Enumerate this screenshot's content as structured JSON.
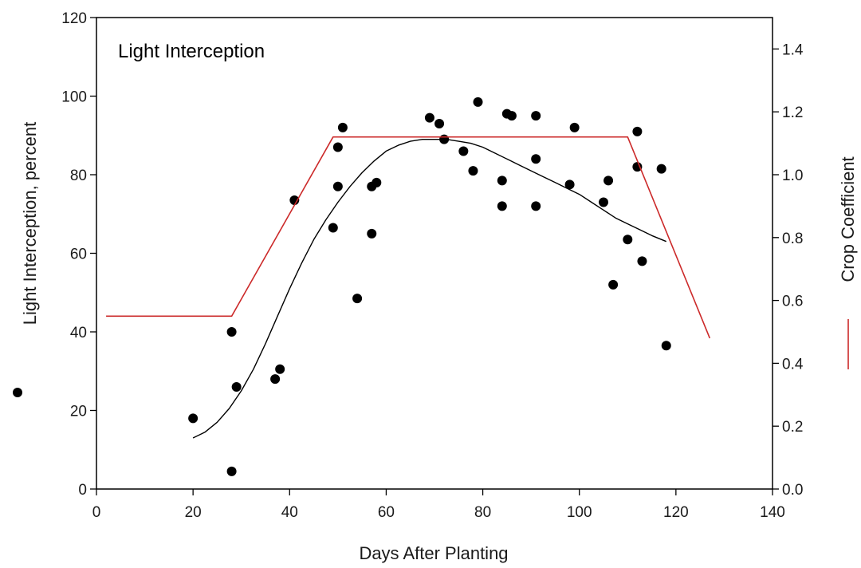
{
  "chart_data": {
    "type": "scatter",
    "title": "Light Interception",
    "xlabel": "Days After Planting",
    "ylabel": "Light Interception, percent",
    "y2label": "Crop Coefficient",
    "xlim": [
      0,
      140
    ],
    "ylim": [
      0,
      120
    ],
    "y2lim": [
      0,
      1.5
    ],
    "x_ticks": [
      "0",
      "20",
      "40",
      "60",
      "80",
      "100",
      "120",
      "140"
    ],
    "y_ticks": [
      "0",
      "20",
      "40",
      "60",
      "80",
      "100",
      "120"
    ],
    "y2_ticks": [
      "0.0",
      "0.2",
      "0.4",
      "0.6",
      "0.8",
      "1.0",
      "1.2",
      "1.4"
    ],
    "grid": false,
    "legend": "left and right axis margins",
    "colors": {
      "points": "#000000",
      "fit_curve": "#000000",
      "crop_coefficient": "#cc2a2a",
      "axes": "#000000"
    },
    "series": [
      {
        "kind": "points",
        "axis": "left",
        "x": [
          20,
          28,
          28,
          29,
          37,
          38,
          41,
          49,
          50,
          50,
          51,
          54,
          57,
          57,
          58,
          69,
          71,
          72,
          76,
          78,
          79,
          84,
          84,
          85,
          86,
          91,
          91,
          91,
          98,
          99,
          105,
          106,
          107,
          110,
          112,
          112,
          113,
          117,
          118
        ],
        "y": [
          18,
          4.5,
          40,
          26,
          28,
          30.5,
          73.5,
          66.5,
          77,
          87,
          92,
          48.5,
          77,
          65,
          78,
          94.5,
          93,
          89,
          86,
          81,
          98.5,
          72,
          78.5,
          95.5,
          95,
          72,
          84,
          95,
          77.5,
          92,
          73,
          78.5,
          52,
          63.5,
          91,
          82,
          58,
          81.5,
          36.5
        ]
      },
      {
        "kind": "fit",
        "axis": "left",
        "x": [
          20,
          22.5,
          25,
          27.5,
          30,
          32.5,
          35,
          37.5,
          40,
          42.5,
          45,
          47.5,
          50,
          52.5,
          55,
          57.5,
          60,
          62.5,
          65,
          67.5,
          70,
          72.5,
          75,
          77.5,
          80,
          82.5,
          85,
          87.5,
          90,
          92.5,
          95,
          97.5,
          100,
          102.5,
          105,
          107.5,
          110,
          112.5,
          115,
          118
        ],
        "y": [
          13,
          14.5,
          17,
          20.5,
          25,
          30.5,
          37,
          44,
          51,
          57.5,
          63.5,
          68.5,
          73,
          77,
          80.5,
          83.5,
          86,
          87.5,
          88.5,
          89,
          89,
          89,
          88.5,
          88,
          87,
          85.5,
          84,
          82.5,
          81,
          79.5,
          78,
          76.5,
          75,
          73,
          71,
          69,
          67.5,
          66,
          64.5,
          63
        ]
      },
      {
        "kind": "line",
        "axis": "right",
        "x": [
          2,
          28,
          49,
          110,
          127
        ],
        "y": [
          0.55,
          0.55,
          1.12,
          1.12,
          0.48
        ]
      }
    ]
  }
}
